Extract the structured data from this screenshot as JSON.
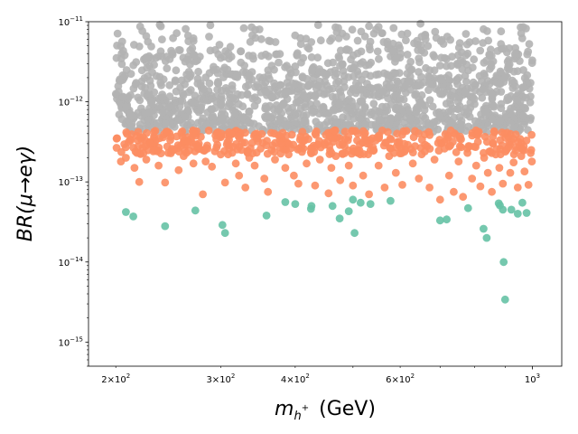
{
  "chart_data": {
    "type": "scatter",
    "title": "",
    "xlabel": "m_h+ (GeV)",
    "ylabel": "BR(μ→eγ)",
    "xscale": "log",
    "yscale": "log",
    "xlim": [
      180,
      1120
    ],
    "ylim": [
      5e-16,
      1e-11
    ],
    "grid": false,
    "legend": "none",
    "x_major_ticks": [
      {
        "value": 200,
        "mantissa": "2",
        "base": "10",
        "exp": "2"
      },
      {
        "value": 300,
        "mantissa": "3",
        "base": "10",
        "exp": "2"
      },
      {
        "value": 400,
        "mantissa": "4",
        "base": "10",
        "exp": "2"
      },
      {
        "value": 600,
        "mantissa": "6",
        "base": "10",
        "exp": "2"
      },
      {
        "value": 1000,
        "mantissa": "",
        "base": "10",
        "exp": "3"
      }
    ],
    "y_major_ticks": [
      {
        "value": 1e-15,
        "base": "10",
        "exp": "−15"
      },
      {
        "value": 1e-14,
        "base": "10",
        "exp": "−14"
      },
      {
        "value": 1e-13,
        "base": "10",
        "exp": "−13"
      },
      {
        "value": 1e-12,
        "base": "10",
        "exp": "−12"
      },
      {
        "value": 1e-11,
        "base": "10",
        "exp": "−11"
      }
    ],
    "series": [
      {
        "name": "gray",
        "color": "#b3b3b3",
        "description": "dense band of points filling 200–1000 GeV from ~4e-13 up to 1e-11",
        "x_range": [
          200,
          1000
        ],
        "y_range": [
          4.2e-13,
          1e-11
        ],
        "n_points": 1400
      },
      {
        "name": "orange",
        "color": "#fc8d62",
        "points": [
          [
            204,
            1.8e-13
          ],
          [
            208,
            2e-13
          ],
          [
            212,
            3.3e-13
          ],
          [
            215,
            1.5e-13
          ],
          [
            217,
            2.3e-13
          ],
          [
            219,
            1e-13
          ],
          [
            222,
            2.7e-13
          ],
          [
            225,
            1.9e-13
          ],
          [
            228,
            3e-13
          ],
          [
            232,
            2.5e-13
          ],
          [
            236,
            1.6e-13
          ],
          [
            240,
            3.6e-13
          ],
          [
            242,
            9.8e-14
          ],
          [
            245,
            2.3e-13
          ],
          [
            250,
            2.5e-13
          ],
          [
            255,
            1.4e-13
          ],
          [
            260,
            2.1e-13
          ],
          [
            265,
            3.2e-13
          ],
          [
            270,
            1.7e-13
          ],
          [
            275,
            2.8e-13
          ],
          [
            280,
            7e-14
          ],
          [
            283,
            1.8e-13
          ],
          [
            285,
            2.6e-13
          ],
          [
            290,
            1.55e-13
          ],
          [
            295,
            3.4e-13
          ],
          [
            300,
            2.2e-13
          ],
          [
            305,
            9.8e-14
          ],
          [
            310,
            2.6e-13
          ],
          [
            318,
            1.7e-13
          ],
          [
            322,
            1.2e-13
          ],
          [
            326,
            3.1e-13
          ],
          [
            330,
            8.5e-14
          ],
          [
            335,
            2e-13
          ],
          [
            342,
            1.6e-13
          ],
          [
            350,
            2.6e-13
          ],
          [
            355,
            1.1e-13
          ],
          [
            360,
            7.5e-14
          ],
          [
            365,
            2.5e-13
          ],
          [
            370,
            1.9e-13
          ],
          [
            378,
            3e-13
          ],
          [
            385,
            1.5e-13
          ],
          [
            390,
            2.2e-13
          ],
          [
            398,
            1.2e-13
          ],
          [
            405,
            9.5e-14
          ],
          [
            412,
            3.2e-13
          ],
          [
            418,
            1.7e-13
          ],
          [
            425,
            2.6e-13
          ],
          [
            432,
            9e-14
          ],
          [
            440,
            1.9e-13
          ],
          [
            448,
            2.9e-13
          ],
          [
            455,
            7.2e-14
          ],
          [
            460,
            1.5e-13
          ],
          [
            468,
            2.1e-13
          ],
          [
            476,
            1.05e-13
          ],
          [
            484,
            2.8e-13
          ],
          [
            492,
            1.6e-13
          ],
          [
            500,
            9e-14
          ],
          [
            510,
            2.3e-13
          ],
          [
            520,
            1.2e-13
          ],
          [
            532,
            7e-14
          ],
          [
            540,
            2.7e-13
          ],
          [
            552,
            1.6e-13
          ],
          [
            565,
            8.5e-14
          ],
          [
            575,
            2.1e-13
          ],
          [
            590,
            1.3e-13
          ],
          [
            605,
            9.2e-14
          ],
          [
            618,
            2.9e-13
          ],
          [
            630,
            1.7e-13
          ],
          [
            645,
            1.1e-13
          ],
          [
            660,
            2.4e-13
          ],
          [
            672,
            8.5e-14
          ],
          [
            685,
            1.9e-13
          ],
          [
            700,
            6e-14
          ],
          [
            712,
            2.6e-13
          ],
          [
            725,
            1.2e-13
          ],
          [
            738,
            7.5e-14
          ],
          [
            752,
            1.8e-13
          ],
          [
            765,
            6.5e-14
          ],
          [
            778,
            2.3e-13
          ],
          [
            792,
            1.1e-13
          ],
          [
            805,
            1.6e-13
          ],
          [
            818,
            8.8e-14
          ],
          [
            830,
            2e-13
          ],
          [
            842,
            1.3e-13
          ],
          [
            855,
            7.5e-14
          ],
          [
            868,
            2.2e-13
          ],
          [
            880,
            1.5e-13
          ],
          [
            892,
            9.5e-14
          ],
          [
            905,
            2.5e-13
          ],
          [
            918,
            1.3e-13
          ],
          [
            930,
            1.75e-13
          ],
          [
            945,
            8.5e-14
          ],
          [
            958,
            2.1e-13
          ],
          [
            970,
            1.35e-13
          ],
          [
            985,
            9.2e-14
          ],
          [
            998,
            1.8e-13
          ]
        ],
        "band": {
          "x_range": [
            200,
            1000
          ],
          "y_range": [
            2.2e-13,
            4.4e-13
          ],
          "n_points": 380
        }
      },
      {
        "name": "green",
        "color": "#66c2a5",
        "points": [
          [
            208,
            4.2e-14
          ],
          [
            214,
            3.7e-14
          ],
          [
            242,
            2.8e-14
          ],
          [
            272,
            4.4e-14
          ],
          [
            302,
            2.9e-14
          ],
          [
            305,
            2.3e-14
          ],
          [
            358,
            3.8e-14
          ],
          [
            385,
            5.6e-14
          ],
          [
            400,
            5.3e-14
          ],
          [
            425,
            4.6e-14
          ],
          [
            426,
            5e-14
          ],
          [
            462,
            5e-14
          ],
          [
            475,
            3.5e-14
          ],
          [
            492,
            4.3e-14
          ],
          [
            500,
            6e-14
          ],
          [
            503,
            2.3e-14
          ],
          [
            515,
            5.5e-14
          ],
          [
            535,
            5.3e-14
          ],
          [
            578,
            5.8e-14
          ],
          [
            700,
            3.3e-14
          ],
          [
            718,
            3.4e-14
          ],
          [
            780,
            4.7e-14
          ],
          [
            828,
            2.6e-14
          ],
          [
            838,
            2e-14
          ],
          [
            878,
            5.4e-14
          ],
          [
            882,
            5.1e-14
          ],
          [
            892,
            4.5e-14
          ],
          [
            895,
            1e-14
          ],
          [
            900,
            3.4e-15
          ],
          [
            922,
            4.5e-14
          ],
          [
            945,
            4e-14
          ],
          [
            962,
            5.5e-14
          ],
          [
            978,
            4.1e-14
          ]
        ]
      }
    ]
  }
}
